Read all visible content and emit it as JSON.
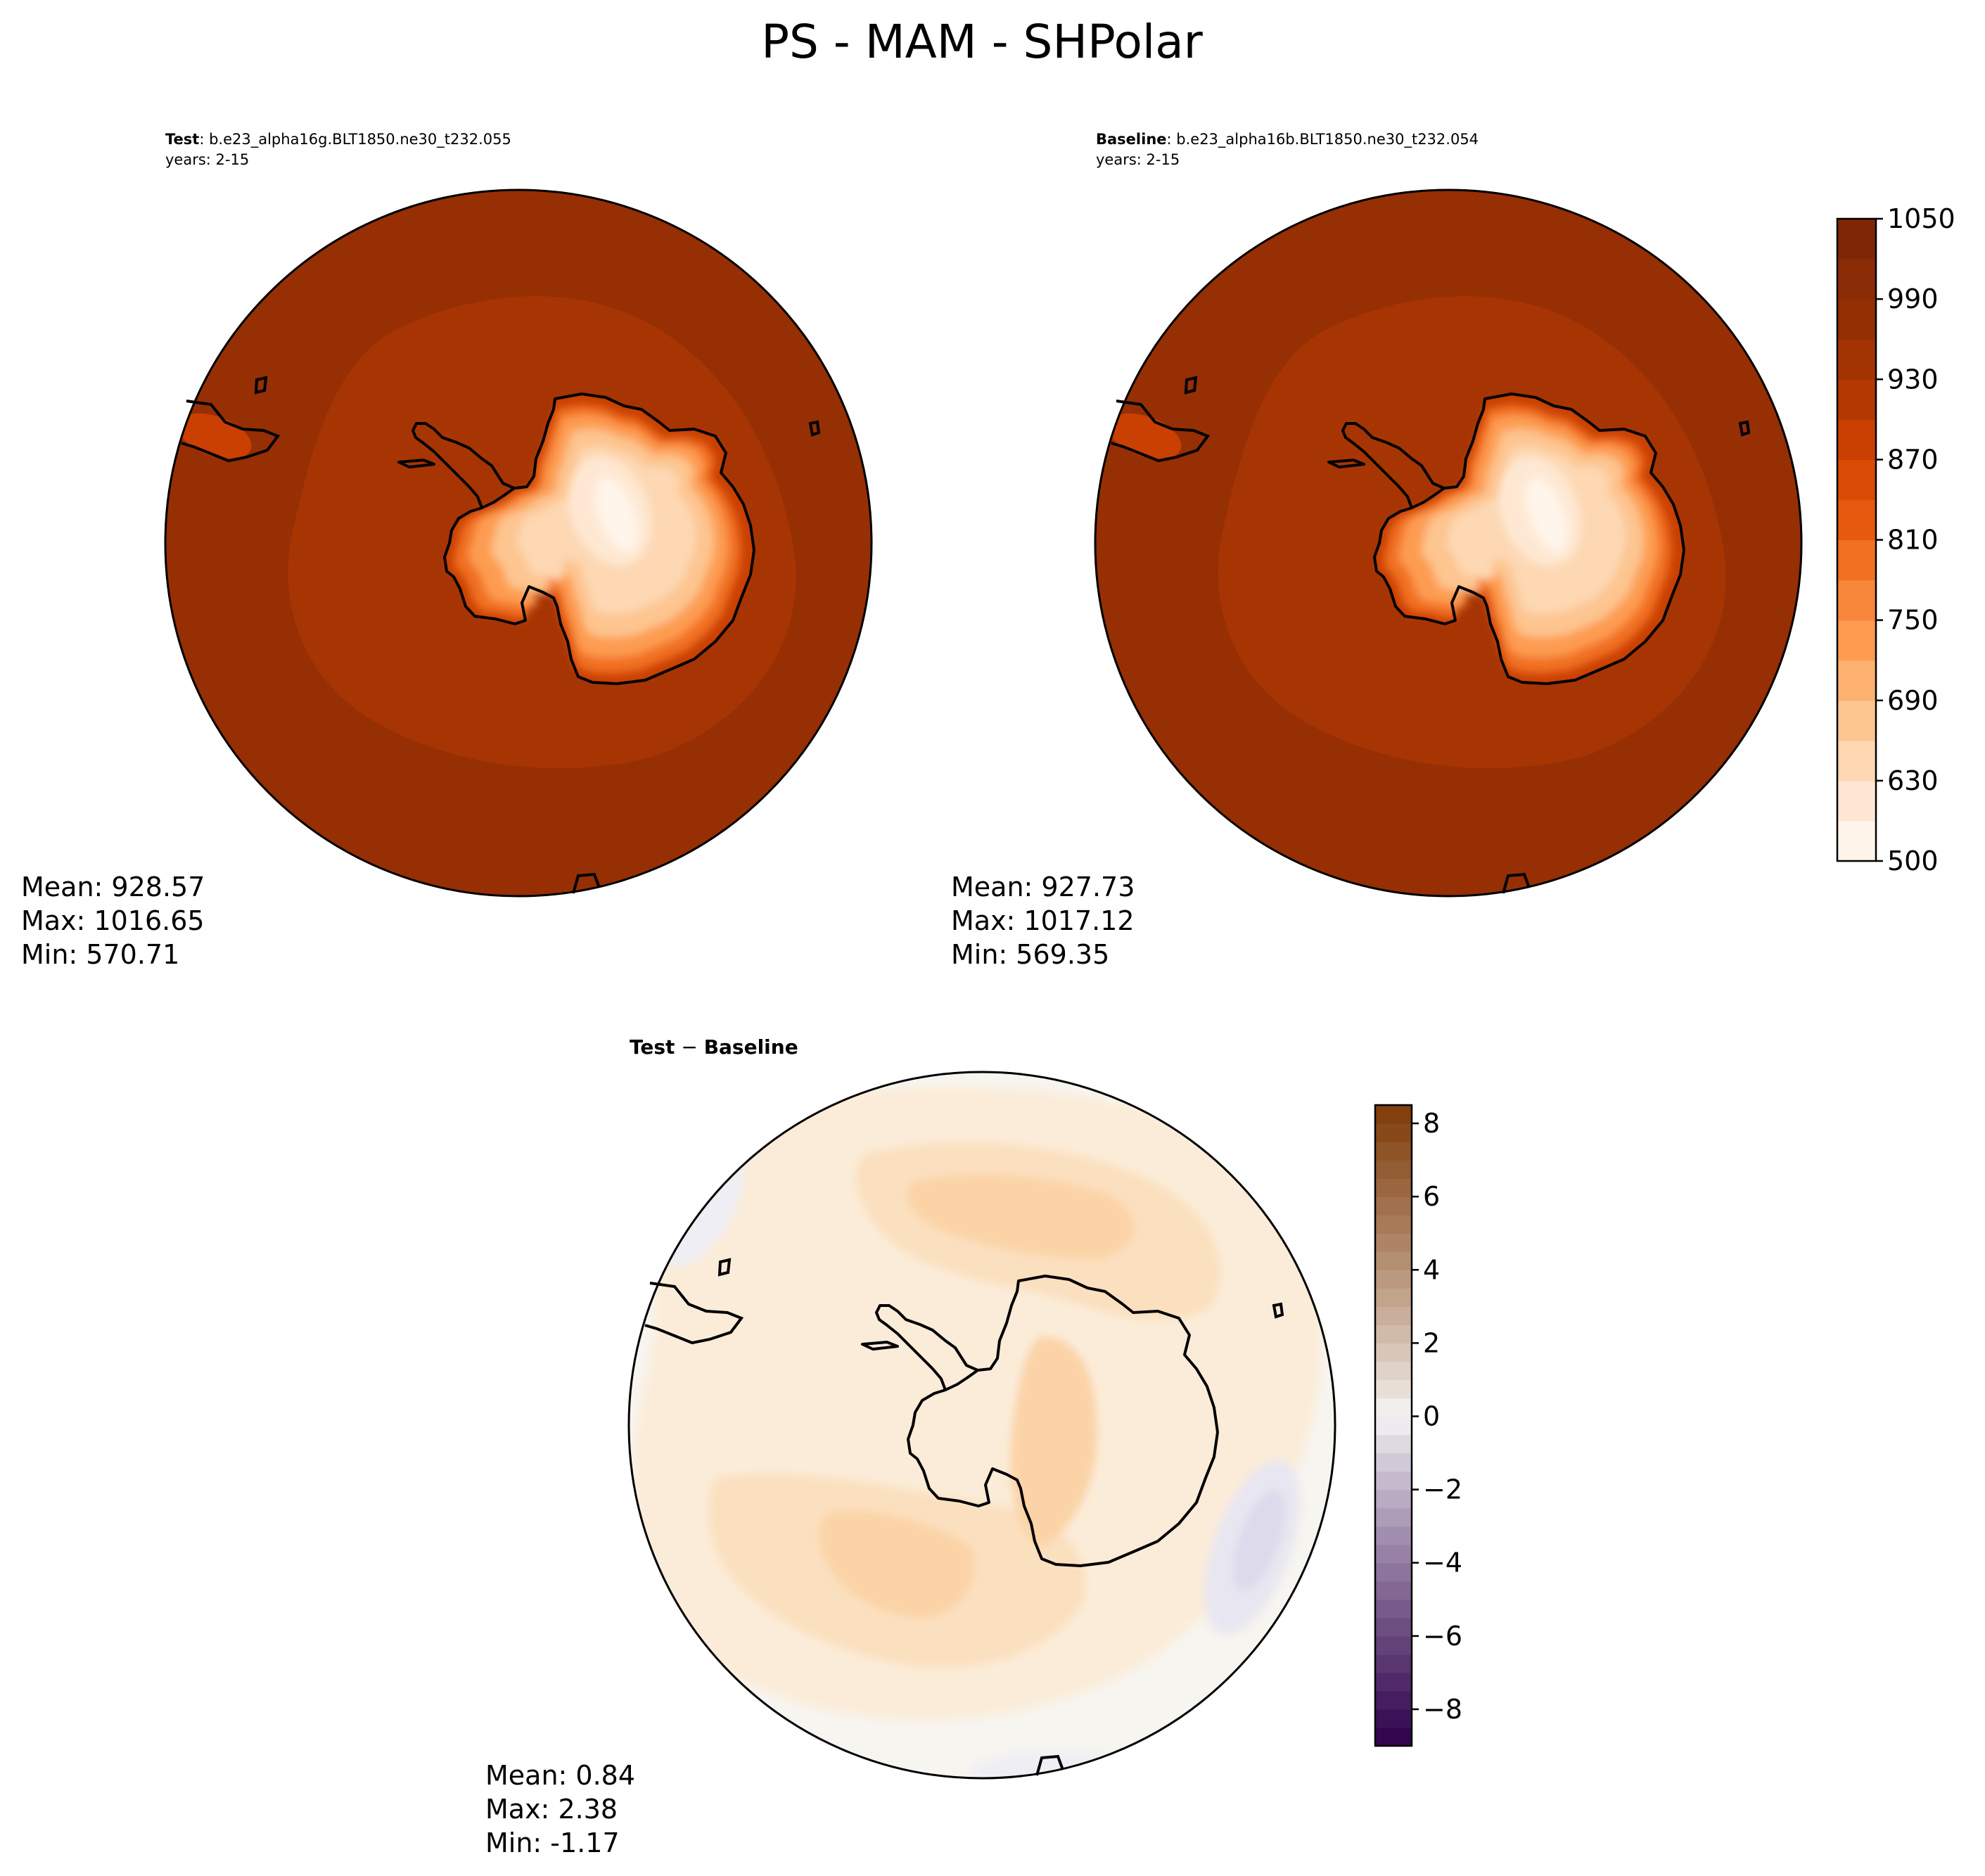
{
  "figure": {
    "title": "PS - MAM - SHPolar"
  },
  "panels": {
    "test": {
      "label": "Test",
      "case": ": b.e23_alpha16g.BLT1850.ne30_t232.055",
      "years": "years: 2-15",
      "stats": {
        "mean": "Mean: 928.57",
        "max": "Max: 1016.65",
        "min": "Min: 570.71"
      }
    },
    "baseline": {
      "label": "Baseline",
      "case": ": b.e23_alpha16b.BLT1850.ne30_t232.054",
      "years": "years: 2-15",
      "stats": {
        "mean": "Mean: 927.73",
        "max": "Max: 1017.12",
        "min": "Min: 569.35"
      }
    },
    "diff": {
      "label_a": "Test",
      "label_op": " − ",
      "label_b": "Baseline",
      "stats": {
        "mean": "Mean:  0.84",
        "max": "Max:  2.38",
        "min": "Min: -1.17"
      }
    }
  },
  "chart_data": [
    {
      "type": "heatmap",
      "projection": "south-polar-stereographic",
      "panel": "Test",
      "stats": {
        "mean": 928.57,
        "max": 1016.65,
        "min": 570.71
      },
      "colorbar": {
        "shared_with": "Baseline",
        "range": [
          500,
          1050
        ]
      }
    },
    {
      "type": "heatmap",
      "projection": "south-polar-stereographic",
      "panel": "Baseline",
      "stats": {
        "mean": 927.73,
        "max": 1017.12,
        "min": 569.35
      },
      "colorbar": {
        "range": [
          500,
          1050
        ],
        "ticks": [
          500,
          630,
          690,
          750,
          810,
          870,
          930,
          990,
          1050
        ],
        "tick_labels": [
          "500",
          "630",
          "690",
          "750",
          "810",
          "870",
          "930",
          "990",
          "1050"
        ],
        "levels": [
          500,
          600,
          630,
          660,
          690,
          720,
          750,
          780,
          810,
          840,
          870,
          900,
          930,
          960,
          990,
          1020,
          1050
        ],
        "colors": [
          "#fff5eb",
          "#fee8d3",
          "#fdd8b3",
          "#fdc590",
          "#fdb170",
          "#fd9c51",
          "#f8863a",
          "#f17022",
          "#e55a0e",
          "#da4b05",
          "#c94002",
          "#b33802",
          "#a23403",
          "#942f04",
          "#892c05",
          "#7f2704"
        ]
      }
    },
    {
      "type": "heatmap",
      "projection": "south-polar-stereographic",
      "panel": "Test − Baseline",
      "stats": {
        "mean": 0.84,
        "max": 2.38,
        "min": -1.17
      },
      "colorbar": {
        "range": [
          -9,
          8.5
        ],
        "ticks": [
          -8,
          -6,
          -4,
          -2,
          0,
          2,
          4,
          6,
          8
        ],
        "tick_labels": [
          "−8",
          "−6",
          "−4",
          "−2",
          "0",
          "2",
          "4",
          "6",
          "8"
        ],
        "low_color": "#2d004b",
        "mid_color": "#f7f7f7",
        "high_color": "#7f3b08"
      }
    }
  ]
}
